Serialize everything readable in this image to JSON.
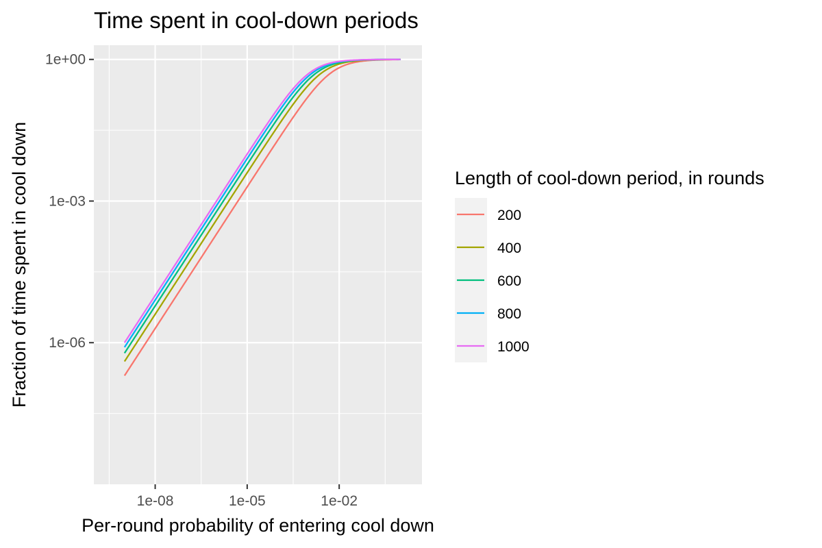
{
  "chart_data": {
    "type": "line",
    "title": "Time spent in cool-down periods",
    "xlabel": "Per-round probability of entering cool down",
    "ylabel": "Fraction of time spent in cool down",
    "x_scale": "log10",
    "y_scale": "log10",
    "xlim": [
      1e-10,
      5
    ],
    "ylim": [
      1e-09,
      2
    ],
    "x_ticks": [
      1e-08,
      1e-05,
      0.01
    ],
    "x_tick_labels": [
      "1e-08",
      "1e-05",
      "1e-02"
    ],
    "y_ticks": [
      1e-06,
      0.001,
      1
    ],
    "y_tick_labels": [
      "1e-06",
      "1e-03",
      "1e+00"
    ],
    "x_range": [
      1e-09,
      1
    ],
    "formula": "y = p*L / (1 + p*L)",
    "grid": true,
    "legend_title": "Length of cool-down period, in rounds",
    "legend_position": "right",
    "series": [
      {
        "name": "200",
        "L": 200,
        "color": "#F8766D"
      },
      {
        "name": "400",
        "L": 400,
        "color": "#A3A500"
      },
      {
        "name": "600",
        "L": 600,
        "color": "#00BF7D"
      },
      {
        "name": "800",
        "L": 800,
        "color": "#00B0F6"
      },
      {
        "name": "1000",
        "L": 1000,
        "color": "#E76BF3"
      }
    ]
  }
}
